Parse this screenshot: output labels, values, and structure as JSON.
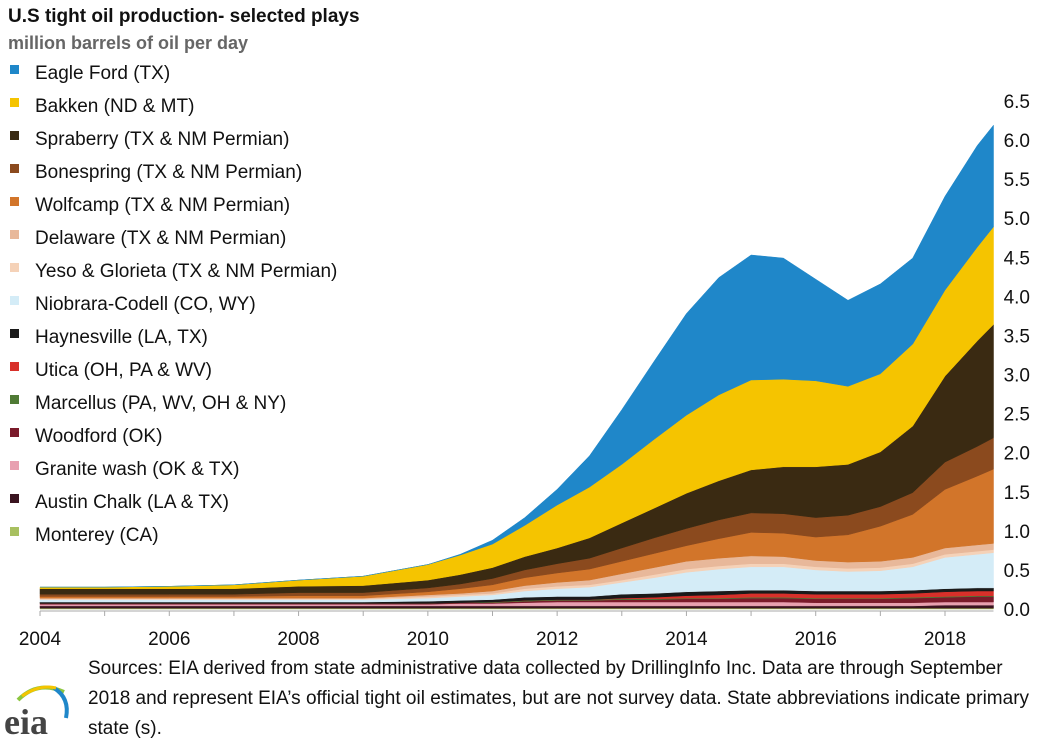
{
  "chart_data": {
    "type": "area",
    "stacked": true,
    "title": "U.S tight oil production- selected plays",
    "ylabel": "million barrels of oil per day",
    "xlim": [
      2004,
      2018.75
    ],
    "ylim": [
      0,
      6.5
    ],
    "x_ticks": [
      "2004",
      "2006",
      "2008",
      "2010",
      "2012",
      "2014",
      "2016",
      "2018"
    ],
    "y_ticks": [
      "0.0",
      "0.5",
      "1.0",
      "1.5",
      "2.0",
      "2.5",
      "3.0",
      "3.5",
      "4.0",
      "4.5",
      "5.0",
      "5.5",
      "6.0",
      "6.5"
    ],
    "y_axis_side": "right",
    "grid": false,
    "legend_position": "top-left",
    "x": [
      2004,
      2005,
      2006,
      2007,
      2008,
      2009,
      2010,
      2010.5,
      2011,
      2011.5,
      2012,
      2012.5,
      2013,
      2013.5,
      2014,
      2014.5,
      2015,
      2015.5,
      2016,
      2016.5,
      2017,
      2017.5,
      2018,
      2018.5,
      2018.75
    ],
    "series": [
      {
        "name": "Eagle Ford (TX)",
        "color": "#1f87c9",
        "values": [
          0,
          0,
          0,
          0,
          0,
          0,
          0,
          0.01,
          0.05,
          0.1,
          0.2,
          0.4,
          0.7,
          1.0,
          1.3,
          1.5,
          1.6,
          1.55,
          1.3,
          1.1,
          1.15,
          1.1,
          1.2,
          1.3,
          1.3
        ]
      },
      {
        "name": "Bakken (ND & MT)",
        "color": "#f5c400",
        "values": [
          0.02,
          0.02,
          0.03,
          0.05,
          0.08,
          0.12,
          0.2,
          0.25,
          0.3,
          0.4,
          0.55,
          0.65,
          0.75,
          0.88,
          1.0,
          1.1,
          1.15,
          1.12,
          1.1,
          1.0,
          1.0,
          1.05,
          1.1,
          1.2,
          1.25
        ]
      },
      {
        "name": "Spraberry (TX & NM Permian)",
        "color": "#3a2a12",
        "values": [
          0.07,
          0.07,
          0.07,
          0.07,
          0.08,
          0.09,
          0.1,
          0.12,
          0.14,
          0.17,
          0.2,
          0.26,
          0.32,
          0.38,
          0.45,
          0.5,
          0.55,
          0.6,
          0.65,
          0.65,
          0.7,
          0.85,
          1.1,
          1.35,
          1.45
        ]
      },
      {
        "name": "Bonespring (TX & NM Permian)",
        "color": "#8b4a1e",
        "values": [
          0.03,
          0.03,
          0.03,
          0.03,
          0.04,
          0.04,
          0.05,
          0.06,
          0.08,
          0.1,
          0.12,
          0.14,
          0.17,
          0.2,
          0.22,
          0.24,
          0.25,
          0.25,
          0.25,
          0.25,
          0.25,
          0.28,
          0.35,
          0.38,
          0.4
        ]
      },
      {
        "name": "Wolfcamp (TX & NM Permian)",
        "color": "#d2752a",
        "values": [
          0.02,
          0.02,
          0.02,
          0.02,
          0.03,
          0.03,
          0.04,
          0.06,
          0.08,
          0.1,
          0.12,
          0.14,
          0.16,
          0.18,
          0.2,
          0.25,
          0.3,
          0.3,
          0.3,
          0.35,
          0.45,
          0.55,
          0.75,
          0.88,
          0.95
        ]
      },
      {
        "name": "Delaware (TX & NM Permian)",
        "color": "#e8b89a",
        "values": [
          0.01,
          0.01,
          0.01,
          0.01,
          0.01,
          0.01,
          0.02,
          0.02,
          0.03,
          0.04,
          0.05,
          0.06,
          0.08,
          0.09,
          0.1,
          0.1,
          0.1,
          0.09,
          0.08,
          0.08,
          0.08,
          0.08,
          0.08,
          0.08,
          0.08
        ]
      },
      {
        "name": "Yeso & Glorieta (TX & NM Permian)",
        "color": "#f5d2b8",
        "values": [
          0.01,
          0.01,
          0.01,
          0.01,
          0.01,
          0.01,
          0.02,
          0.02,
          0.02,
          0.03,
          0.03,
          0.03,
          0.03,
          0.04,
          0.04,
          0.04,
          0.04,
          0.04,
          0.04,
          0.04,
          0.04,
          0.04,
          0.04,
          0.04,
          0.04
        ]
      },
      {
        "name": "Niobrara-Codell (CO, WY)",
        "color": "#d4ecf7",
        "values": [
          0.03,
          0.03,
          0.03,
          0.03,
          0.03,
          0.03,
          0.04,
          0.05,
          0.06,
          0.08,
          0.1,
          0.12,
          0.15,
          0.2,
          0.25,
          0.28,
          0.3,
          0.3,
          0.27,
          0.25,
          0.26,
          0.3,
          0.4,
          0.43,
          0.45
        ]
      },
      {
        "name": "Haynesville (LA, TX)",
        "color": "#1a1a1a",
        "values": [
          0.02,
          0.02,
          0.02,
          0.02,
          0.02,
          0.02,
          0.03,
          0.03,
          0.03,
          0.04,
          0.04,
          0.04,
          0.05,
          0.05,
          0.05,
          0.05,
          0.04,
          0.04,
          0.04,
          0.04,
          0.04,
          0.04,
          0.04,
          0.04,
          0.04
        ]
      },
      {
        "name": "Utica (OH, PA & WV)",
        "color": "#d8302a",
        "values": [
          0,
          0,
          0,
          0,
          0,
          0,
          0,
          0,
          0,
          0,
          0,
          0,
          0.01,
          0.02,
          0.03,
          0.04,
          0.05,
          0.05,
          0.05,
          0.05,
          0.05,
          0.05,
          0.06,
          0.06,
          0.06
        ]
      },
      {
        "name": "Marcellus (PA, WV, OH & NY)",
        "color": "#4f7a35",
        "values": [
          0,
          0,
          0,
          0,
          0,
          0,
          0,
          0,
          0.01,
          0.01,
          0.01,
          0.01,
          0.01,
          0.01,
          0.01,
          0.01,
          0.01,
          0.01,
          0.01,
          0.01,
          0.01,
          0.01,
          0.01,
          0.01,
          0.01
        ]
      },
      {
        "name": "Woodford (OK)",
        "color": "#7a1a2a",
        "values": [
          0.01,
          0.01,
          0.01,
          0.01,
          0.01,
          0.01,
          0.01,
          0.01,
          0.01,
          0.02,
          0.02,
          0.02,
          0.03,
          0.03,
          0.04,
          0.04,
          0.05,
          0.05,
          0.05,
          0.05,
          0.05,
          0.06,
          0.06,
          0.07,
          0.07
        ]
      },
      {
        "name": "Granite wash (OK & TX)",
        "color": "#e8a0b0",
        "values": [
          0.02,
          0.02,
          0.02,
          0.02,
          0.02,
          0.02,
          0.02,
          0.03,
          0.03,
          0.04,
          0.05,
          0.05,
          0.05,
          0.05,
          0.05,
          0.05,
          0.05,
          0.05,
          0.04,
          0.04,
          0.04,
          0.04,
          0.04,
          0.04,
          0.04
        ]
      },
      {
        "name": "Austin Chalk (LA & TX)",
        "color": "#3a1420",
        "values": [
          0.03,
          0.03,
          0.03,
          0.03,
          0.03,
          0.03,
          0.03,
          0.03,
          0.03,
          0.03,
          0.03,
          0.03,
          0.03,
          0.03,
          0.03,
          0.03,
          0.03,
          0.03,
          0.03,
          0.03,
          0.03,
          0.03,
          0.04,
          0.04,
          0.04
        ]
      },
      {
        "name": "Monterey (CA)",
        "color": "#a8c060",
        "values": [
          0.01,
          0.01,
          0.01,
          0.01,
          0.01,
          0.01,
          0.01,
          0.01,
          0.01,
          0.01,
          0.01,
          0.01,
          0.01,
          0.01,
          0.01,
          0.01,
          0.01,
          0.01,
          0.01,
          0.01,
          0.01,
          0.01,
          0.01,
          0.01,
          0.01
        ]
      }
    ]
  },
  "sources": "Sources: EIA derived from state administrative data collected by DrillingInfo Inc. Data are through September 2018 and represent EIA’s official tight oil estimates, but are not survey data. State abbreviations indicate primary state (s).",
  "logo": {
    "text": "eia",
    "colors": [
      "#1f87c9",
      "#8cc63f",
      "#f5c400"
    ]
  }
}
